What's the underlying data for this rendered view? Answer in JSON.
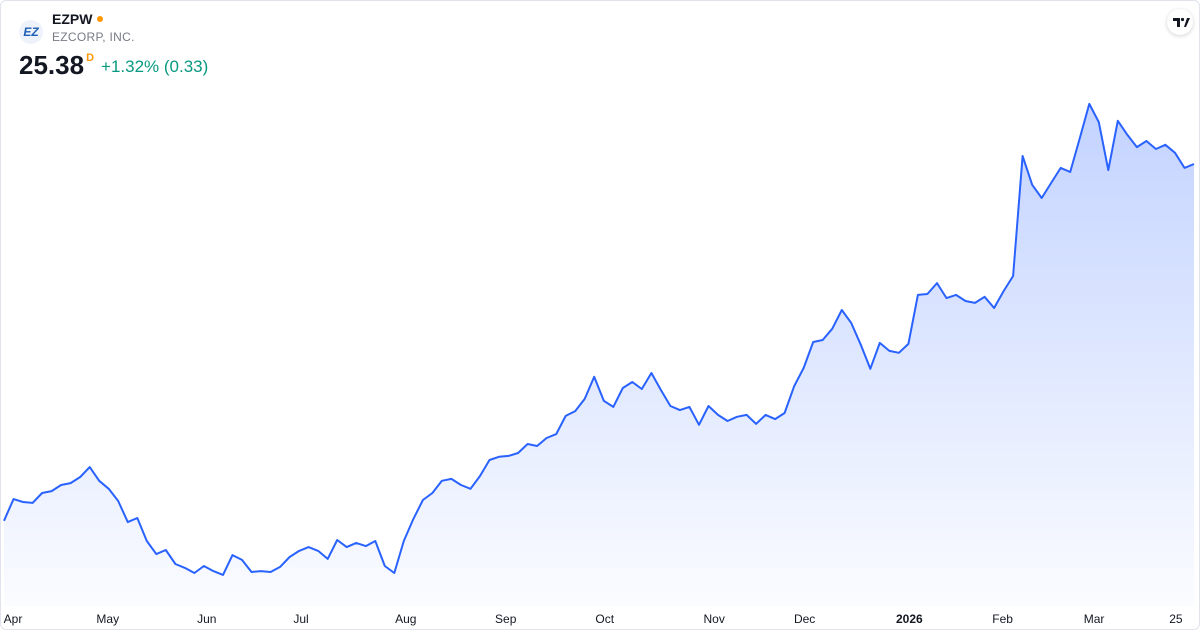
{
  "chart_data": {
    "type": "area",
    "title": "EZPW",
    "subtitle": "EZCORP, INC.",
    "logo": "EZ",
    "last_price": 25.38,
    "interval": "D",
    "change": "+1.32% (0.33)",
    "color": "#2962ff",
    "xlim": [
      0,
      125
    ],
    "ylim": [
      11.1,
      30.475
    ],
    "xticks": [
      {
        "value": 0.84,
        "label": "Apr"
      },
      {
        "value": 10.9,
        "label": "May"
      },
      {
        "value": 21.3,
        "label": "Jun"
      },
      {
        "value": 31.2,
        "label": "Jul"
      },
      {
        "value": 42.2,
        "label": "Aug"
      },
      {
        "value": 52.7,
        "label": "Sep"
      },
      {
        "value": 63.1,
        "label": "Oct"
      },
      {
        "value": 74.6,
        "label": "Nov"
      },
      {
        "value": 84.1,
        "label": "Dec"
      },
      {
        "value": 95.1,
        "label": "2026",
        "bold": true
      },
      {
        "value": 104.9,
        "label": "Feb"
      },
      {
        "value": 114.5,
        "label": "Mar"
      },
      {
        "value": 123.1,
        "label": "25"
      }
    ],
    "values": [
      14.23,
      14.91,
      14.82,
      14.79,
      15.1,
      15.16,
      15.35,
      15.41,
      15.6,
      15.91,
      15.48,
      15.23,
      14.85,
      14.19,
      14.32,
      13.6,
      13.19,
      13.32,
      12.88,
      12.76,
      12.6,
      12.82,
      12.66,
      12.54,
      13.16,
      13.01,
      12.63,
      12.66,
      12.63,
      12.79,
      13.1,
      13.29,
      13.41,
      13.29,
      13.04,
      13.63,
      13.41,
      13.54,
      13.44,
      13.6,
      12.82,
      12.6,
      13.6,
      14.29,
      14.88,
      15.1,
      15.48,
      15.54,
      15.35,
      15.23,
      15.63,
      16.13,
      16.23,
      16.26,
      16.35,
      16.63,
      16.57,
      16.82,
      16.94,
      17.51,
      17.66,
      18.04,
      18.73,
      17.98,
      17.79,
      18.38,
      18.57,
      18.35,
      18.85,
      18.32,
      17.82,
      17.69,
      17.79,
      17.23,
      17.82,
      17.54,
      17.35,
      17.48,
      17.54,
      17.26,
      17.54,
      17.41,
      17.6,
      18.44,
      19.01,
      19.82,
      19.88,
      20.23,
      20.82,
      20.41,
      19.73,
      18.98,
      19.79,
      19.54,
      19.48,
      19.76,
      21.29,
      21.32,
      21.66,
      21.19,
      21.29,
      21.1,
      21.04,
      21.23,
      20.88,
      21.41,
      21.88,
      25.63,
      24.73,
      24.32,
      24.79,
      25.26,
      25.13,
      26.19,
      27.26,
      26.69,
      25.19,
      26.73,
      26.29,
      25.91,
      26.1,
      25.85,
      25.98,
      25.73,
      25.26,
      25.38
    ]
  }
}
